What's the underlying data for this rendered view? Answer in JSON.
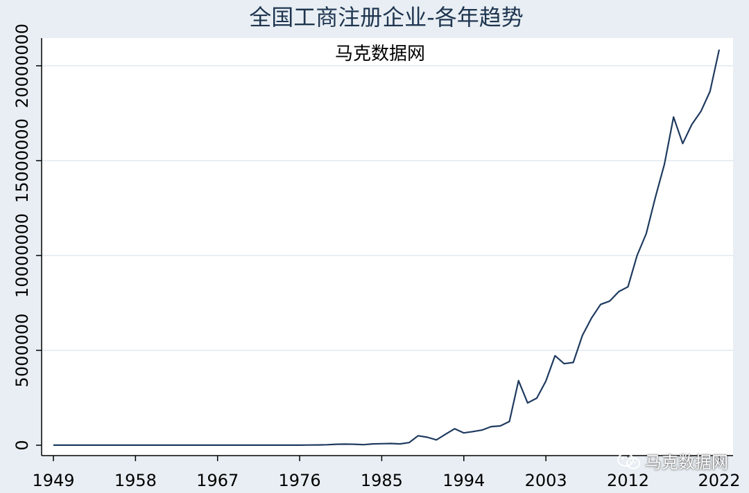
{
  "chart_data": {
    "type": "line",
    "title": "全国工商注册企业-各年趋势",
    "subtitle": "马克数据网",
    "xlabel": "",
    "ylabel": "",
    "xlim": [
      1949,
      2022
    ],
    "ylim": [
      0,
      20000000
    ],
    "x_ticks": [
      "1949",
      "1958",
      "1967",
      "1976",
      "1985",
      "1994",
      "2003",
      "2012",
      "2022"
    ],
    "y_ticks": [
      "0",
      "5000000",
      "10000000",
      "15000000",
      "20000000"
    ],
    "grid": true,
    "line_color": "#1e3a5f",
    "series": [
      {
        "x": [
          1949,
          1950,
          1951,
          1952,
          1953,
          1954,
          1955,
          1956,
          1957,
          1958,
          1959,
          1960,
          1961,
          1962,
          1963,
          1964,
          1965,
          1966,
          1967,
          1968,
          1969,
          1970,
          1971,
          1972,
          1973,
          1974,
          1975,
          1976,
          1977,
          1978,
          1979,
          1980,
          1981,
          1982,
          1983,
          1984,
          1985,
          1986,
          1987,
          1988,
          1989,
          1990,
          1991,
          1992,
          1993,
          1994,
          1995,
          1996,
          1997,
          1998,
          1999,
          2000,
          2001,
          2002,
          2003,
          2004,
          2005,
          2006,
          2007,
          2008,
          2009,
          2010,
          2011,
          2012,
          2013,
          2014,
          2015,
          2016,
          2017,
          2018,
          2019,
          2020,
          2021,
          2022
        ],
        "y": [
          5000,
          5000,
          5000,
          5000,
          5000,
          5000,
          5000,
          5000,
          5000,
          5000,
          5000,
          5000,
          5000,
          5000,
          5000,
          5000,
          5000,
          5000,
          5000,
          5000,
          5000,
          5000,
          5000,
          5000,
          5000,
          5000,
          5000,
          5000,
          10000,
          15000,
          25000,
          50000,
          60000,
          50000,
          30000,
          70000,
          80000,
          90000,
          70000,
          140000,
          500000,
          420000,
          280000,
          580000,
          870000,
          650000,
          720000,
          800000,
          980000,
          1020000,
          1250000,
          3400000,
          2230000,
          2480000,
          3380000,
          4720000,
          4300000,
          4360000,
          5780000,
          6700000,
          7420000,
          7600000,
          8100000,
          8350000,
          10000000,
          11150000,
          13050000,
          14820000,
          17300000,
          15900000,
          16900000,
          17600000,
          18650000,
          20850000
        ]
      }
    ]
  },
  "watermark": {
    "icon": "wechat-icon",
    "text": "马克数据网"
  }
}
